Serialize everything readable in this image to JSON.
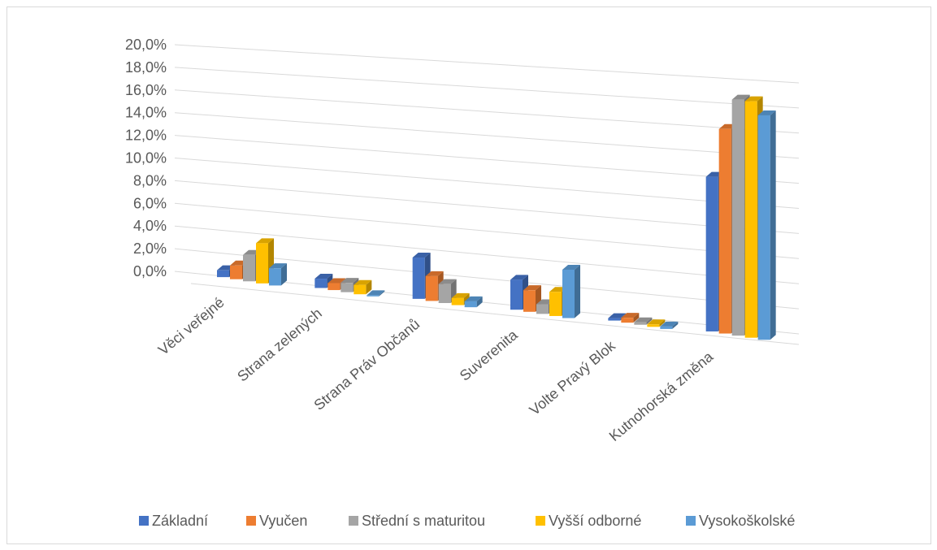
{
  "chart_data": {
    "type": "bar",
    "title": "",
    "xlabel": "",
    "ylabel": "",
    "ylim": [
      0,
      20
    ],
    "y_ticks": [
      "0,0%",
      "2,0%",
      "4,0%",
      "6,0%",
      "8,0%",
      "10,0%",
      "12,0%",
      "14,0%",
      "16,0%",
      "18,0%",
      "20,0%"
    ],
    "grid": true,
    "legend_position": "bottom",
    "categories": [
      "Věci veřejné",
      "Strana zelených",
      "Strana Práv Občanů",
      "Suverenita",
      "Volte Pravý Blok",
      "Kutnohorská změna"
    ],
    "series": [
      {
        "name": "Základní",
        "color": "#4472C4",
        "values": [
          0.6,
          0.8,
          3.5,
          2.5,
          0.2,
          12.5
        ]
      },
      {
        "name": "Vyučen",
        "color": "#ED7D31",
        "values": [
          1.2,
          0.6,
          2.1,
          1.8,
          0.4,
          16.5
        ]
      },
      {
        "name": "Střední s maturitou",
        "color": "#A5A5A5",
        "values": [
          2.3,
          0.8,
          1.6,
          0.8,
          0.2,
          19.0
        ]
      },
      {
        "name": "Vyšší odborné",
        "color": "#FFC000",
        "values": [
          3.5,
          0.8,
          0.6,
          2.0,
          0.2,
          19.0
        ]
      },
      {
        "name": "Vysokoškolské",
        "color": "#5B9BD5",
        "values": [
          1.5,
          0.1,
          0.5,
          4.0,
          0.2,
          18.0
        ]
      }
    ]
  }
}
